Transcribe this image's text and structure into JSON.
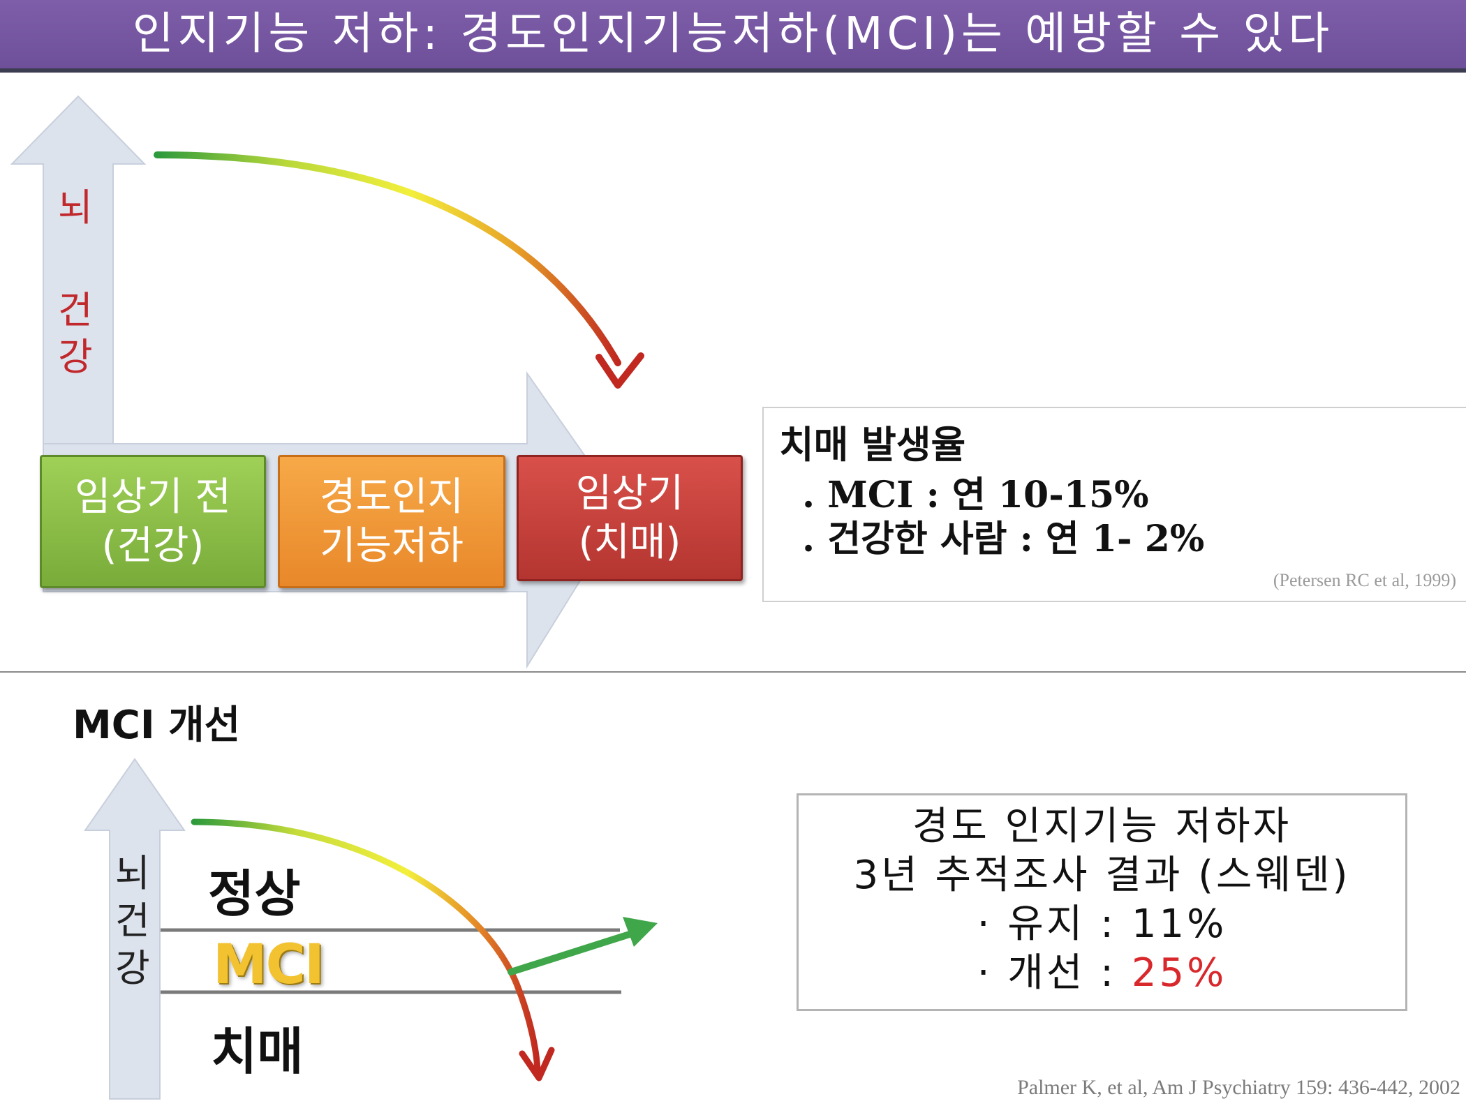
{
  "title": "인지기능 저하: 경도인지기능저하(MCI)는 예방할 수 있다",
  "top": {
    "axis_label_1": "뇌",
    "axis_label_2": "건",
    "axis_label_3": "강",
    "stages": [
      {
        "label": "임상기 전\n(건강)"
      },
      {
        "label": "경도인지\n기능저하"
      },
      {
        "label": "임상기\n(치매)"
      }
    ],
    "incidence": {
      "title": "치매 발생율",
      "lines": [
        ". MCI : 연 10-15%",
        ". 건강한 사람 : 연 1- 2%"
      ],
      "citation": "(Petersen RC et al, 1999)"
    }
  },
  "bottom": {
    "heading": "MCI 개선",
    "axis_labels": [
      "뇌",
      "건",
      "강"
    ],
    "zones": {
      "normal": "정상",
      "mci": "MCI",
      "dementia": "치매"
    },
    "study": {
      "line1": "경도 인지기능 저하자",
      "line2": "3년 추적조사 결과 (스웨덴)",
      "maintain_label": "· 유지 :",
      "maintain_value": "11%",
      "improve_label": "· 개선 :",
      "improve_value": "25%"
    },
    "citation": "Palmer K, et al, Am J Psychiatry 159: 436-442, 2002"
  },
  "colors": {
    "title_bg": "#7a5aa6",
    "healthy": "#79ab3a",
    "mci": "#e8882a",
    "dementia": "#b43530",
    "highlight_red": "#d8282c",
    "mci_gold": "#f2c230"
  }
}
